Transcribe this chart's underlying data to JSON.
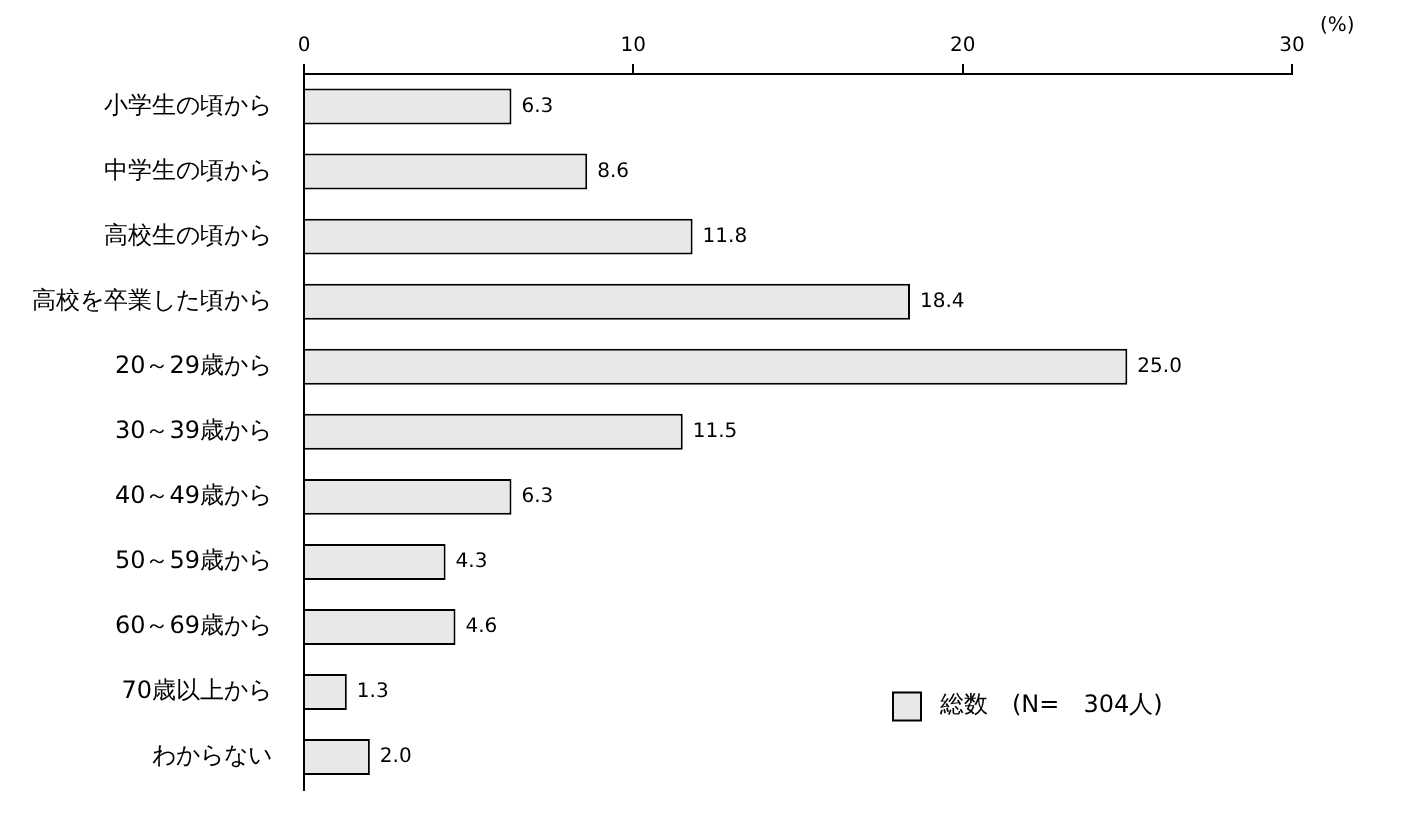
{
  "chart_data": {
    "type": "bar",
    "orientation": "horizontal",
    "xlabel": "(%)",
    "categories": [
      "小学生の頃から",
      "中学生の頃から",
      "高校生の頃から",
      "高校を卒業した頃から",
      "20～29歳から",
      "30～39歳から",
      "40～49歳から",
      "50～59歳から",
      "60～69歳から",
      "70歳以上から",
      "わからない"
    ],
    "series": [
      {
        "name": "総数　(N=　304人)",
        "color": "#e8e8e8",
        "values": [
          6.3,
          8.6,
          11.8,
          18.4,
          25.0,
          11.5,
          6.3,
          4.3,
          4.6,
          1.3,
          2.0
        ],
        "value_labels": [
          "6.3",
          "8.6",
          "11.8",
          "18.4",
          "25.0",
          "11.5",
          "6.3",
          "4.3",
          "4.6",
          "1.3",
          "2.0"
        ]
      }
    ],
    "xlim": [
      0,
      30
    ],
    "xticks": [
      0,
      10,
      20,
      30
    ],
    "grid": false,
    "legend": "bottom right"
  }
}
